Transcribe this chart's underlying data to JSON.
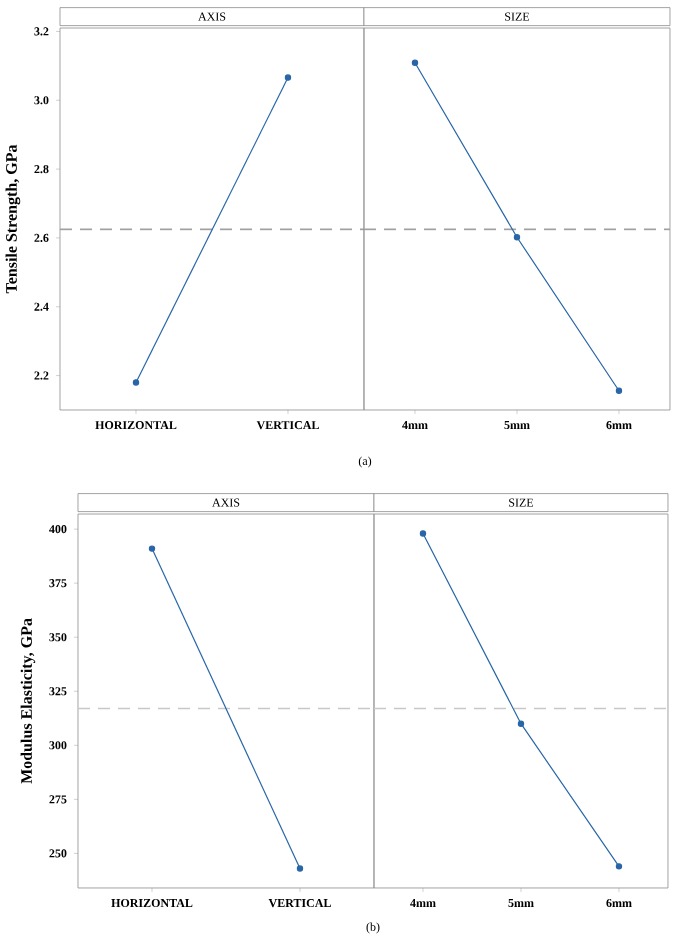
{
  "chart_data": [
    {
      "type": "line",
      "title": "AXIS",
      "ylabel": "Tensile Strength, GPa",
      "categories": [
        "HORIZONTAL",
        "VERTICAL"
      ],
      "values": [
        2.18,
        3.066
      ],
      "color": "#2866a8",
      "marker": "circle",
      "line_style": "solid",
      "ylim": [
        2.1,
        3.21
      ],
      "yticks": [
        {
          "value": 2.2,
          "label": "2.2"
        },
        {
          "value": 2.4,
          "label": "2.4"
        },
        {
          "value": 2.6,
          "label": "2.6"
        },
        {
          "value": 2.8,
          "label": "2.8"
        },
        {
          "value": 3.0,
          "label": "3.0"
        },
        {
          "value": 3.2,
          "label": "3.2"
        }
      ],
      "ref_lines": [
        {
          "axis": "y",
          "value": 2.625,
          "color": "#a0a0a0",
          "line_style": "dashed"
        }
      ],
      "annotations": [
        "(a)"
      ]
    },
    {
      "type": "line",
      "title": "SIZE",
      "categories": [
        "4mm",
        "5mm",
        "6mm"
      ],
      "values": [
        3.109,
        2.602,
        2.156
      ],
      "color": "#2866a8",
      "marker": "circle",
      "line_style": "solid",
      "ylim": [
        2.1,
        3.21
      ],
      "tick_labels": "x",
      "ref_lines": [
        {
          "axis": "y",
          "value": 2.625,
          "color": "#a0a0a0",
          "line_style": "dashed"
        }
      ]
    },
    {
      "type": "line",
      "title": "AXIS",
      "ylabel": "Modulus Elasticity, GPa",
      "categories": [
        "HORIZONTAL",
        "VERTICAL"
      ],
      "values": [
        391,
        243
      ],
      "color": "#2866a8",
      "marker": "circle",
      "line_style": "solid",
      "ylim": [
        234,
        407
      ],
      "yticks": [
        250,
        275,
        300,
        325,
        350,
        375,
        400
      ],
      "ref_lines": [
        {
          "axis": "y",
          "value": 317,
          "color": "#c8c8c8",
          "line_style": "dashed"
        }
      ],
      "annotations": [
        "(b)"
      ]
    },
    {
      "type": "line",
      "title": "SIZE",
      "categories": [
        "4mm",
        "5mm",
        "6mm"
      ],
      "values": [
        398,
        310,
        244
      ],
      "color": "#2866a8",
      "marker": "circle",
      "line_style": "solid",
      "ylim": [
        234,
        407
      ],
      "tick_labels": "x",
      "ref_lines": [
        {
          "axis": "y",
          "value": 317,
          "color": "#c8c8c8",
          "line_style": "dashed"
        }
      ]
    }
  ]
}
